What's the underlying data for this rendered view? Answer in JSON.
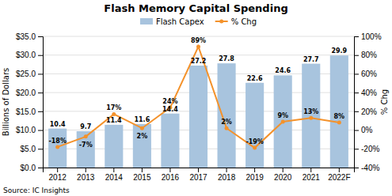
{
  "chart_data": {
    "type": "bar",
    "title": "Flash Memory Capital Spending",
    "categories": [
      "2012",
      "2013",
      "2014",
      "2015",
      "2016",
      "2017",
      "2018",
      "2019",
      "2020",
      "2021",
      "2022F"
    ],
    "series": [
      {
        "name": "Flash Capex",
        "type": "bar",
        "color": "#a8c4de",
        "values": [
          10.4,
          9.7,
          11.4,
          11.6,
          14.4,
          27.2,
          27.8,
          22.6,
          24.6,
          27.7,
          29.9
        ]
      },
      {
        "name": "% Chg",
        "type": "line",
        "axis": "y2",
        "color": "#f4922b",
        "marker": "circle",
        "values": [
          -18,
          -7,
          17,
          2,
          24,
          89,
          2,
          -19,
          9,
          13,
          8
        ],
        "value_labels": [
          "-18%",
          "-7%",
          "17%",
          "2%",
          "24%",
          "89%",
          "2%",
          "-19%",
          "9%",
          "13%",
          "8%"
        ]
      }
    ],
    "ylabel": "Billions of Dollars",
    "y2label": "% Chg",
    "ylim": [
      0,
      35
    ],
    "yticks": [
      {
        "value": 0,
        "label": "$0.0"
      },
      {
        "value": 5,
        "label": "$5.0"
      },
      {
        "value": 10,
        "label": "$10.0"
      },
      {
        "value": 15,
        "label": "$15.0"
      },
      {
        "value": 20,
        "label": "$20.0"
      },
      {
        "value": 25,
        "label": "$25.0"
      },
      {
        "value": 30,
        "label": "$30.0"
      },
      {
        "value": 35,
        "label": "$35.0"
      }
    ],
    "y2lim": [
      -40,
      100
    ],
    "y2ticks": [
      {
        "value": -40,
        "label": "-40%"
      },
      {
        "value": -20,
        "label": "-20%"
      },
      {
        "value": 0,
        "label": "0%"
      },
      {
        "value": 20,
        "label": "20%"
      },
      {
        "value": 40,
        "label": "40%"
      },
      {
        "value": 60,
        "label": "60%"
      },
      {
        "value": 80,
        "label": "80%"
      },
      {
        "value": 100,
        "label": "100%"
      }
    ],
    "grid": true,
    "legend": "top",
    "data_labels": true,
    "annotations": [
      "Source:  IC Insights"
    ]
  }
}
